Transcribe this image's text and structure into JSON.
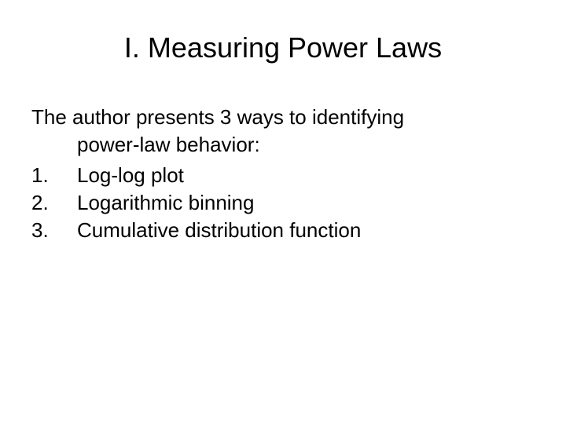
{
  "slide": {
    "title": "I. Measuring Power Laws",
    "intro_line1": "The author presents 3 ways to identifying",
    "intro_line2": "power-law behavior:",
    "items": [
      {
        "number": "1.",
        "text": "Log-log plot"
      },
      {
        "number": "2.",
        "text": "Logarithmic binning"
      },
      {
        "number": "3.",
        "text": "Cumulative distribution function"
      }
    ],
    "background_color": "#ffffff",
    "text_color": "#000000",
    "title_fontsize": 36,
    "body_fontsize": 26,
    "font_family": "Arial"
  }
}
